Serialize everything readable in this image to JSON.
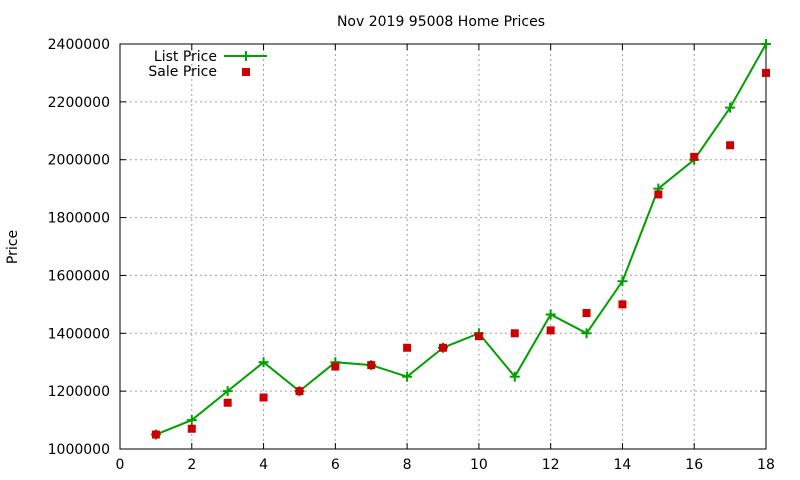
{
  "chart_data": {
    "type": "line",
    "title": "Nov 2019 95008 Home Prices",
    "xlabel": "",
    "ylabel": "Price",
    "xlim": [
      0,
      18
    ],
    "ylim": [
      1000000,
      2400000
    ],
    "x_ticks": [
      0,
      2,
      4,
      6,
      8,
      10,
      12,
      14,
      16,
      18
    ],
    "y_ticks": [
      1000000,
      1200000,
      1400000,
      1600000,
      1800000,
      2000000,
      2200000,
      2400000
    ],
    "grid": true,
    "legend_position": "top-left",
    "series": [
      {
        "name": "List Price",
        "style": "line-with-plus-markers",
        "color": "#00a000",
        "x": [
          1,
          2,
          3,
          4,
          5,
          6,
          7,
          8,
          9,
          10,
          11,
          12,
          13,
          14,
          15,
          16,
          17,
          18
        ],
        "values": [
          1050000,
          1100000,
          1200000,
          1300000,
          1200000,
          1300000,
          1290000,
          1250000,
          1350000,
          1400000,
          1250000,
          1465000,
          1400000,
          1580000,
          1900000,
          2000000,
          2180000,
          2400000
        ]
      },
      {
        "name": "Sale Price",
        "style": "square-markers",
        "color": "#cc0000",
        "x": [
          1,
          2,
          3,
          4,
          5,
          6,
          7,
          8,
          9,
          10,
          11,
          12,
          13,
          14,
          15,
          16,
          17,
          18
        ],
        "values": [
          1050000,
          1070000,
          1160000,
          1178000,
          1200000,
          1285000,
          1290000,
          1350000,
          1350000,
          1390000,
          1400000,
          1410000,
          1470000,
          1500000,
          1880000,
          2010000,
          2050000,
          2300000
        ]
      }
    ]
  }
}
